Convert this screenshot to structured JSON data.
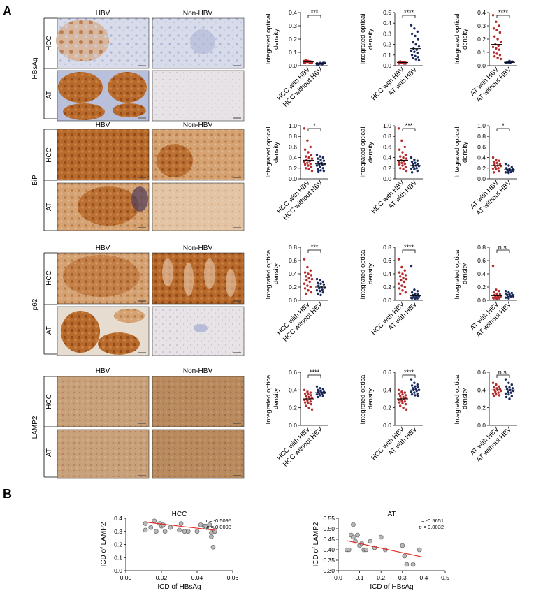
{
  "panels": {
    "a": "A",
    "b": "B"
  },
  "micrographs": {
    "col_headers": [
      "HBV",
      "Non-HBV"
    ],
    "markers": [
      "HBsAg",
      "BiP",
      "p62",
      "LAMP2"
    ],
    "row_labels": [
      "HCC",
      "AT"
    ]
  },
  "ylabel_line1": "Integrated optical",
  "ylabel_line2": "density",
  "colors": {
    "hbv": "#b52a2a",
    "nonhbv": "#1a2a5c",
    "regression": "#e8221c",
    "scatter_fill": "#b8b8b8"
  },
  "chart_data": [
    {
      "type": "scatter",
      "marker": "HBsAg",
      "xlabels": [
        "HCC with HBV",
        "HCC without HBV"
      ],
      "ylim": [
        0,
        0.4
      ],
      "ticks": [
        "0.0",
        "0.1",
        "0.2",
        "0.3",
        "0.4"
      ],
      "sig": "***",
      "series": [
        {
          "values": [
            0.02,
            0.03,
            0.03,
            0.025,
            0.035,
            0.02,
            0.04,
            0.03,
            0.025,
            0.03,
            0.02,
            0.035,
            0.028,
            0.032,
            0.022,
            0.03,
            0.026,
            0.034,
            0.03,
            0.024
          ]
        },
        {
          "values": [
            0.01,
            0.015,
            0.02,
            0.012,
            0.018,
            0.022,
            0.01,
            0.014,
            0.02,
            0.016,
            0.012,
            0.018,
            0.02,
            0.015
          ]
        }
      ]
    },
    {
      "type": "scatter",
      "marker": "HBsAg",
      "xlabels": [
        "HCC with HBV",
        "AT with HBV"
      ],
      "ylim": [
        0,
        0.5
      ],
      "ticks": [
        "0.0",
        "0.1",
        "0.2",
        "0.3",
        "0.4",
        "0.5"
      ],
      "sig": "****",
      "series": [
        {
          "values": [
            0.02,
            0.03,
            0.025,
            0.03,
            0.035,
            0.02,
            0.04,
            0.03,
            0.025,
            0.03,
            0.02,
            0.035,
            0.028,
            0.032,
            0.022,
            0.03
          ]
        },
        {
          "values": [
            0.38,
            0.35,
            0.32,
            0.3,
            0.28,
            0.25,
            0.22,
            0.2,
            0.18,
            0.16,
            0.15,
            0.14,
            0.13,
            0.12,
            0.1,
            0.09,
            0.08,
            0.07,
            0.06,
            0.05
          ]
        }
      ]
    },
    {
      "type": "scatter",
      "marker": "HBsAg",
      "xlabels": [
        "AT with HBV",
        "AT without HBV"
      ],
      "ylim": [
        0,
        0.4
      ],
      "ticks": [
        "0.0",
        "0.1",
        "0.2",
        "0.3",
        "0.4"
      ],
      "sig": "****",
      "series": [
        {
          "values": [
            0.38,
            0.33,
            0.3,
            0.28,
            0.27,
            0.25,
            0.22,
            0.2,
            0.18,
            0.16,
            0.15,
            0.14,
            0.13,
            0.12,
            0.1,
            0.09,
            0.08,
            0.07,
            0.06,
            0.05
          ]
        },
        {
          "values": [
            0.02,
            0.025,
            0.03,
            0.02,
            0.035,
            0.03,
            0.025,
            0.02
          ]
        }
      ]
    },
    {
      "type": "scatter",
      "marker": "BiP",
      "xlabels": [
        "HCC with HBV",
        "HCC without HBV"
      ],
      "ylim": [
        0,
        1.0
      ],
      "ticks": [
        "0.0",
        "0.2",
        "0.4",
        "0.6",
        "0.8",
        "1.0"
      ],
      "sig": "*",
      "series": [
        {
          "values": [
            0.95,
            0.72,
            0.6,
            0.55,
            0.5,
            0.45,
            0.42,
            0.4,
            0.38,
            0.35,
            0.33,
            0.32,
            0.3,
            0.28,
            0.27,
            0.25,
            0.22,
            0.2,
            0.18,
            0.15
          ]
        },
        {
          "values": [
            0.45,
            0.42,
            0.4,
            0.38,
            0.36,
            0.34,
            0.32,
            0.3,
            0.28,
            0.27,
            0.26,
            0.25,
            0.22,
            0.2,
            0.18,
            0.16,
            0.15,
            0.14
          ]
        }
      ]
    },
    {
      "type": "scatter",
      "marker": "BiP",
      "xlabels": [
        "HCC with HBV",
        "AT with HBV"
      ],
      "ylim": [
        0,
        1.0
      ],
      "ticks": [
        "0.0",
        "0.2",
        "0.4",
        "0.6",
        "0.8",
        "1.0"
      ],
      "sig": "***",
      "series": [
        {
          "values": [
            0.95,
            0.72,
            0.6,
            0.55,
            0.5,
            0.45,
            0.42,
            0.4,
            0.38,
            0.35,
            0.33,
            0.32,
            0.3,
            0.28,
            0.27,
            0.25,
            0.22,
            0.2,
            0.18,
            0.15
          ]
        },
        {
          "values": [
            0.4,
            0.36,
            0.34,
            0.32,
            0.3,
            0.28,
            0.27,
            0.25,
            0.24,
            0.22,
            0.2,
            0.19,
            0.18,
            0.15,
            0.12
          ]
        }
      ]
    },
    {
      "type": "scatter",
      "marker": "BiP",
      "xlabels": [
        "AT with HBV",
        "AT without HBV"
      ],
      "ylim": [
        0,
        1.0
      ],
      "ticks": [
        "0.0",
        "0.2",
        "0.4",
        "0.6",
        "0.8",
        "1.0"
      ],
      "sig": "*",
      "series": [
        {
          "values": [
            0.4,
            0.36,
            0.34,
            0.32,
            0.3,
            0.28,
            0.27,
            0.25,
            0.24,
            0.22,
            0.2,
            0.19,
            0.18,
            0.15,
            0.12
          ]
        },
        {
          "values": [
            0.28,
            0.25,
            0.22,
            0.2,
            0.19,
            0.18,
            0.17,
            0.16,
            0.15,
            0.14,
            0.13,
            0.12,
            0.11
          ]
        }
      ]
    },
    {
      "type": "scatter",
      "marker": "p62",
      "xlabels": [
        "HCC with HBV",
        "HCC without HBV"
      ],
      "ylim": [
        0,
        0.8
      ],
      "ticks": [
        "0.0",
        "0.2",
        "0.4",
        "0.6",
        "0.8"
      ],
      "sig": "***",
      "series": [
        {
          "values": [
            0.62,
            0.5,
            0.45,
            0.42,
            0.4,
            0.38,
            0.36,
            0.34,
            0.32,
            0.3,
            0.28,
            0.25,
            0.22,
            0.2,
            0.18,
            0.15,
            0.12,
            0.1
          ]
        },
        {
          "values": [
            0.32,
            0.3,
            0.28,
            0.26,
            0.25,
            0.24,
            0.22,
            0.2,
            0.19,
            0.18,
            0.16,
            0.15,
            0.14,
            0.12,
            0.1,
            0.08
          ]
        }
      ]
    },
    {
      "type": "scatter",
      "marker": "p62",
      "xlabels": [
        "HCC with HBV",
        "AT with HBV"
      ],
      "ylim": [
        0,
        0.8
      ],
      "ticks": [
        "0.0",
        "0.2",
        "0.4",
        "0.6",
        "0.8"
      ],
      "sig": "****",
      "series": [
        {
          "values": [
            0.62,
            0.5,
            0.45,
            0.42,
            0.4,
            0.38,
            0.36,
            0.34,
            0.32,
            0.3,
            0.28,
            0.25,
            0.22,
            0.2,
            0.18,
            0.15,
            0.12,
            0.1
          ]
        },
        {
          "values": [
            0.52,
            0.16,
            0.14,
            0.12,
            0.1,
            0.09,
            0.08,
            0.07,
            0.06,
            0.05,
            0.05,
            0.04,
            0.04,
            0.03,
            0.03,
            0.02
          ]
        }
      ]
    },
    {
      "type": "scatter",
      "marker": "p62",
      "xlabels": [
        "AT with HBV",
        "AT without HBV"
      ],
      "ylim": [
        0,
        0.8
      ],
      "ticks": [
        "0.0",
        "0.2",
        "0.4",
        "0.6",
        "0.8"
      ],
      "sig": "n.s.",
      "series": [
        {
          "values": [
            0.52,
            0.16,
            0.14,
            0.12,
            0.1,
            0.09,
            0.08,
            0.07,
            0.06,
            0.05,
            0.05,
            0.04,
            0.04,
            0.03,
            0.03,
            0.02
          ]
        },
        {
          "values": [
            0.14,
            0.12,
            0.11,
            0.1,
            0.09,
            0.08,
            0.08,
            0.07,
            0.06,
            0.05,
            0.05,
            0.04,
            0.03
          ]
        }
      ]
    },
    {
      "type": "scatter",
      "marker": "LAMP2",
      "xlabels": [
        "HCC with HBV",
        "HCC without HBV"
      ],
      "ylim": [
        0,
        0.6
      ],
      "ticks": [
        "0.0",
        "0.2",
        "0.4",
        "0.6"
      ],
      "sig": "****",
      "series": [
        {
          "values": [
            0.4,
            0.38,
            0.37,
            0.36,
            0.35,
            0.34,
            0.33,
            0.32,
            0.31,
            0.3,
            0.3,
            0.29,
            0.28,
            0.27,
            0.26,
            0.25,
            0.24,
            0.22,
            0.2,
            0.18
          ]
        },
        {
          "values": [
            0.44,
            0.42,
            0.41,
            0.4,
            0.39,
            0.38,
            0.38,
            0.37,
            0.37,
            0.36,
            0.36,
            0.35,
            0.34,
            0.33,
            0.32
          ]
        }
      ]
    },
    {
      "type": "scatter",
      "marker": "LAMP2",
      "xlabels": [
        "HCC with HBV",
        "AT with HBV"
      ],
      "ylim": [
        0,
        0.6
      ],
      "ticks": [
        "0.0",
        "0.2",
        "0.4",
        "0.6"
      ],
      "sig": "****",
      "series": [
        {
          "values": [
            0.4,
            0.38,
            0.37,
            0.36,
            0.35,
            0.34,
            0.33,
            0.32,
            0.31,
            0.3,
            0.3,
            0.29,
            0.28,
            0.27,
            0.26,
            0.25,
            0.24,
            0.22,
            0.2,
            0.18
          ]
        },
        {
          "values": [
            0.52,
            0.48,
            0.46,
            0.45,
            0.44,
            0.43,
            0.42,
            0.41,
            0.4,
            0.4,
            0.39,
            0.38,
            0.37,
            0.36,
            0.35,
            0.34,
            0.33
          ]
        }
      ]
    },
    {
      "type": "scatter",
      "marker": "LAMP2",
      "xlabels": [
        "AT with HBV",
        "AT without HBV"
      ],
      "ylim": [
        0,
        0.6
      ],
      "ticks": [
        "0.0",
        "0.2",
        "0.4",
        "0.6"
      ],
      "sig": "n.s.",
      "series": [
        {
          "values": [
            0.48,
            0.46,
            0.44,
            0.43,
            0.42,
            0.41,
            0.4,
            0.4,
            0.39,
            0.38,
            0.37,
            0.36,
            0.35,
            0.34,
            0.33
          ]
        },
        {
          "values": [
            0.52,
            0.48,
            0.46,
            0.44,
            0.43,
            0.42,
            0.41,
            0.4,
            0.39,
            0.38,
            0.37,
            0.36,
            0.35,
            0.33,
            0.32,
            0.3
          ]
        }
      ]
    },
    {
      "type": "scatter",
      "title": "HCC",
      "xlabel": "ICD of HBsAg",
      "ylabel": "ICD of LAMP2",
      "xlim": [
        0,
        0.06
      ],
      "ylim": [
        0,
        0.4
      ],
      "xticks": [
        "0.00",
        "0.02",
        "0.04",
        "0.06"
      ],
      "yticks": [
        "0.0",
        "0.1",
        "0.2",
        "0.3",
        "0.4"
      ],
      "r_text": "r = -0.5095",
      "p_text": "= 0.0093",
      "fit": {
        "y0": 0.372,
        "y1": 0.309,
        "xr": [
          0.01,
          0.05
        ]
      },
      "x": [
        0.011,
        0.011,
        0.014,
        0.016,
        0.017,
        0.019,
        0.02,
        0.021,
        0.022,
        0.025,
        0.03,
        0.031,
        0.033,
        0.035,
        0.04,
        0.042,
        0.044,
        0.045,
        0.047,
        0.048,
        0.048,
        0.049,
        0.05,
        0.05
      ],
      "y": [
        0.36,
        0.31,
        0.33,
        0.38,
        0.3,
        0.36,
        0.34,
        0.35,
        0.3,
        0.33,
        0.31,
        0.36,
        0.3,
        0.3,
        0.3,
        0.35,
        0.34,
        0.34,
        0.35,
        0.29,
        0.26,
        0.18,
        0.3,
        0.31
      ]
    },
    {
      "type": "scatter",
      "title": "AT",
      "xlabel": "ICD of HBsAg",
      "ylabel": "ICD of LAMP2",
      "xlim": [
        0,
        0.5
      ],
      "ylim": [
        0.3,
        0.55
      ],
      "xticks": [
        "0.0",
        "0.1",
        "0.2",
        "0.3",
        "0.4",
        "0.5"
      ],
      "yticks": [
        "0.30",
        "0.35",
        "0.40",
        "0.45",
        "0.50",
        "0.55"
      ],
      "r_text": "r = -0.5651",
      "p_text": "= 0.0032",
      "fit": {
        "y0": 0.443,
        "y1": 0.366,
        "xr": [
          0.04,
          0.39
        ]
      },
      "x": [
        0.04,
        0.05,
        0.06,
        0.07,
        0.07,
        0.08,
        0.09,
        0.1,
        0.11,
        0.12,
        0.13,
        0.15,
        0.17,
        0.2,
        0.22,
        0.3,
        0.31,
        0.32,
        0.35,
        0.38
      ],
      "y": [
        0.4,
        0.4,
        0.47,
        0.52,
        0.46,
        0.44,
        0.47,
        0.42,
        0.43,
        0.4,
        0.4,
        0.44,
        0.41,
        0.46,
        0.4,
        0.42,
        0.37,
        0.33,
        0.33,
        0.4
      ]
    }
  ]
}
